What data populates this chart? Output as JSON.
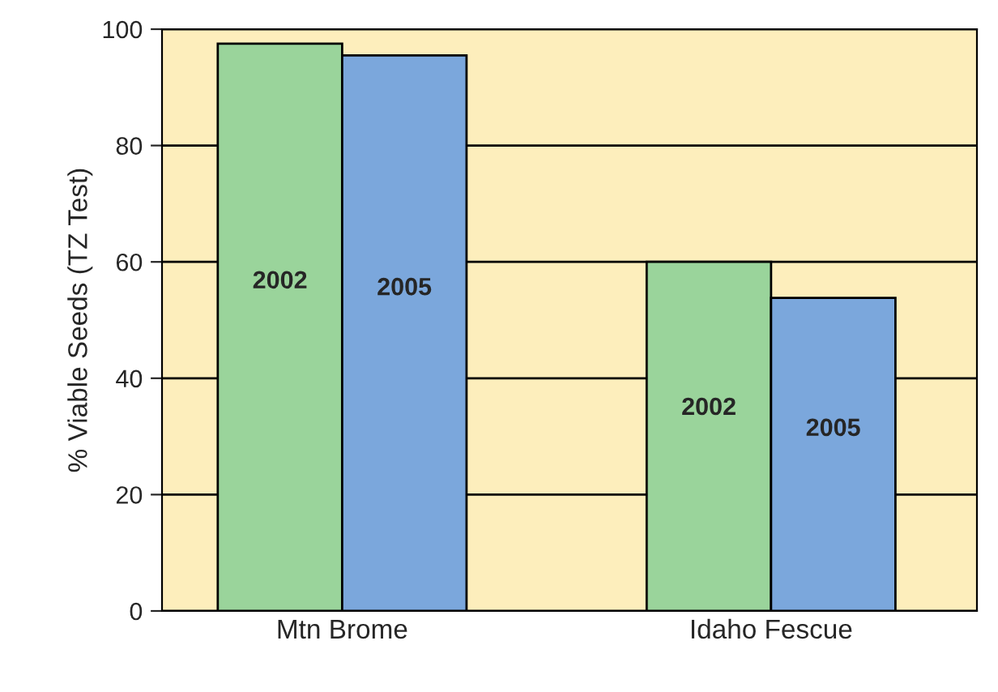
{
  "chart_data": {
    "type": "bar",
    "ylabel": "% Viable Seeds (TZ Test)",
    "categories": [
      "Mtn Brome",
      "Idaho Fescue"
    ],
    "series": [
      {
        "name": "2002",
        "color": "#9ad49b",
        "values": [
          97.5,
          60
        ]
      },
      {
        "name": "2005",
        "color": "#7ba7dc",
        "values": [
          95.5,
          53.8
        ]
      }
    ],
    "ylim": [
      0,
      100
    ],
    "yticks": [
      0,
      20,
      40,
      60,
      80,
      100
    ],
    "grid": "y",
    "legend": false
  }
}
